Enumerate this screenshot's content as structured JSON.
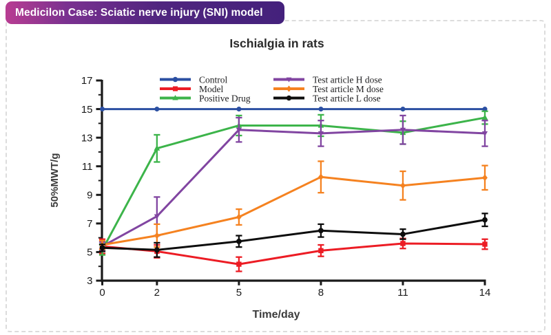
{
  "header": {
    "badge_label": "Medicilon Case: Sciatic nerve injury (SNI) model",
    "badge_gradient_left": "#b83d92",
    "badge_gradient_right": "#44217c"
  },
  "chart_data": {
    "type": "line",
    "title": "Ischialgia in rats",
    "xlabel": "Time/day",
    "ylabel": "50%MWT/g",
    "x": [
      0,
      2,
      5,
      8,
      11,
      14
    ],
    "xticks": [
      0,
      2,
      5,
      8,
      11,
      14
    ],
    "ylim": [
      3,
      17
    ],
    "yticks": [
      3,
      5,
      7,
      9,
      11,
      13,
      15,
      17
    ],
    "grid": false,
    "error_bars": true,
    "legend_position": "top-inside-two-columns",
    "legend_columns": [
      [
        0,
        1,
        2
      ],
      [
        3,
        4,
        5
      ]
    ],
    "series": [
      {
        "name": "Control",
        "color": "#2b4fa2",
        "marker": "circle",
        "values": [
          15,
          15,
          15,
          15,
          15,
          15
        ],
        "errors": [
          0,
          0,
          0,
          0,
          0,
          0
        ]
      },
      {
        "name": "Model",
        "color": "#ec1c24",
        "marker": "square",
        "values": [
          5.4,
          5.05,
          4.15,
          5.1,
          5.6,
          5.55
        ],
        "errors": [
          0.5,
          0.45,
          0.5,
          0.4,
          0.35,
          0.35
        ]
      },
      {
        "name": "Positive Drug",
        "color": "#3cb44a",
        "marker": "triangle-up",
        "values": [
          5.15,
          12.25,
          13.85,
          13.85,
          13.35,
          14.4
        ],
        "errors": [
          0.35,
          0.95,
          0.7,
          0.75,
          0.8,
          0.45
        ]
      },
      {
        "name": "Test article H dose",
        "color": "#8145a1",
        "marker": "triangle-down",
        "values": [
          5.4,
          7.5,
          13.55,
          13.3,
          13.55,
          13.3
        ],
        "errors": [
          0.3,
          1.35,
          0.85,
          0.9,
          1.0,
          0.9
        ]
      },
      {
        "name": "Test article M dose",
        "color": "#f58220",
        "marker": "diamond",
        "values": [
          5.5,
          6.15,
          7.45,
          10.25,
          9.65,
          10.2
        ],
        "errors": [
          0.3,
          0.8,
          0.55,
          1.1,
          1.0,
          0.85
        ]
      },
      {
        "name": "Test article L dose",
        "color": "#0d0d0d",
        "marker": "circle",
        "values": [
          5.3,
          5.15,
          5.75,
          6.5,
          6.25,
          7.25
        ],
        "errors": [
          0.25,
          0.5,
          0.4,
          0.45,
          0.35,
          0.45
        ]
      }
    ]
  }
}
